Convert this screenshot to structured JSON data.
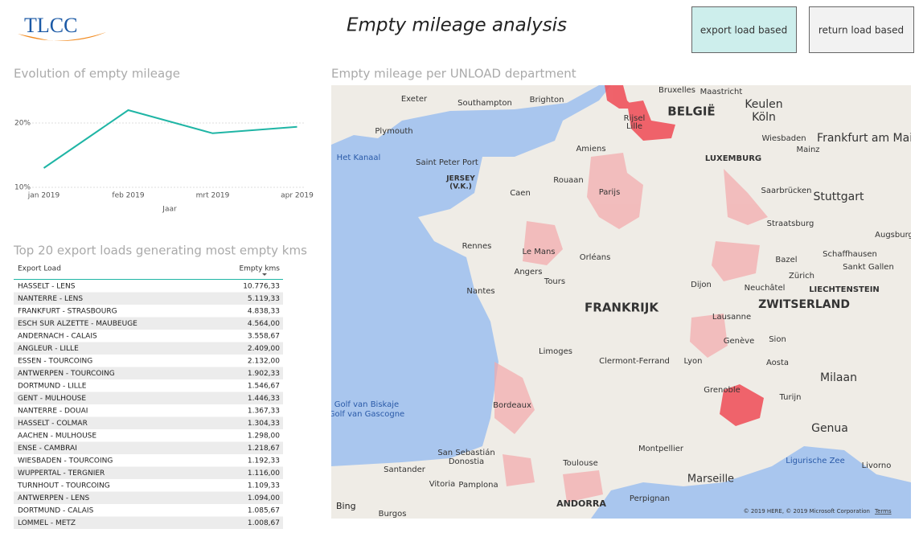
{
  "header": {
    "logo": "TLCC",
    "title": "Empty mileage analysis",
    "buttons": [
      "export load based",
      "return load based"
    ]
  },
  "chart_data": {
    "type": "line",
    "title": "Evolution of empty mileage",
    "xlabel": "Jaar",
    "categories": [
      "jan 2019",
      "feb 2019",
      "mrt 2019",
      "apr 2019"
    ],
    "values": [
      13,
      22,
      18.4,
      19.4
    ],
    "color": "#1fb5a5",
    "ylim": [
      10,
      23
    ],
    "yticks": [
      {
        "value": 10,
        "label": "10%"
      },
      {
        "value": 20,
        "label": "20%"
      }
    ],
    "grid": true
  },
  "table": {
    "title": "Top 20 export loads generating most empty kms",
    "columns": [
      "Export Load",
      "Empty kms"
    ],
    "rows": [
      [
        "HASSELT - LENS",
        "10.776,33"
      ],
      [
        "NANTERRE - LENS",
        "5.119,33"
      ],
      [
        "FRANKFURT - STRASBOURG",
        "4.838,33"
      ],
      [
        "ESCH SUR ALZETTE - MAUBEUGE",
        "4.564,00"
      ],
      [
        "ANDERNACH - CALAIS",
        "3.558,67"
      ],
      [
        "ANGLEUR - LILLE",
        "2.409,00"
      ],
      [
        "ESSEN - TOURCOING",
        "2.132,00"
      ],
      [
        "ANTWERPEN - TOURCOING",
        "1.902,33"
      ],
      [
        "DORTMUND - LILLE",
        "1.546,67"
      ],
      [
        "GENT - MULHOUSE",
        "1.446,33"
      ],
      [
        "NANTERRE - DOUAI",
        "1.367,33"
      ],
      [
        "HASSELT - COLMAR",
        "1.304,33"
      ],
      [
        "AACHEN - MULHOUSE",
        "1.298,00"
      ],
      [
        "ENSE - CAMBRAI",
        "1.218,67"
      ],
      [
        "WIESBADEN - TOURCOING",
        "1.192,33"
      ],
      [
        "WUPPERTAL - TERGNIER",
        "1.116,00"
      ],
      [
        "TURNHOUT - TOURCOING",
        "1.109,33"
      ],
      [
        "ANTWERPEN - LENS",
        "1.094,00"
      ],
      [
        "DORTMUND - CALAIS",
        "1.085,67"
      ],
      [
        "LOMMEL - METZ",
        "1.008,67"
      ]
    ]
  },
  "map": {
    "title": "Empty mileage per UNLOAD department",
    "labels": [
      "Exeter",
      "Southampton",
      "Brighton",
      "Plymouth",
      "Bruxelles",
      "Maastricht",
      "BELGIË",
      "Keulen",
      "Köln",
      "Rijsel",
      "Lille",
      "Het Kanaal",
      "Saint Peter Port",
      "JERSEY",
      "(V.K.)",
      "Amiens",
      "Wiesbaden",
      "Mainz",
      "Frankfurt am Main",
      "LUXEMBURG",
      "Caen",
      "Rouaan",
      "Parijs",
      "Saarbrücken",
      "Stuttgart",
      "Straatsburg",
      "Augsburg",
      "Rennes",
      "Le Mans",
      "Orléans",
      "Schaffhausen",
      "Bazel",
      "Sankt Gallen",
      "Angers",
      "Tours",
      "Zürich",
      "Dijon",
      "Nantes",
      "Neuchâtel",
      "LIECHTENSTEIN",
      "FRANKRIJK",
      "ZWITSERLAND",
      "Lausanne",
      "Genève",
      "Sion",
      "Limoges",
      "Clermont-Ferrand",
      "Lyon",
      "Aosta",
      "Milaan",
      "Grenoble",
      "Turijn",
      "Bordeaux",
      "Golf van Biskaje",
      "Golf van Gascogne",
      "Genua",
      "San Sebastián",
      "Donostia",
      "Montpellier",
      "Toulouse",
      "Ligurische Zee",
      "Santander",
      "Livorno",
      "Marseille",
      "Vitoria",
      "Pamplona",
      "Perpignan",
      "ANDORRA",
      "Burgos"
    ],
    "brand": "Bing",
    "copyright": "© 2019 HERE, © 2019 Microsoft Corporation",
    "terms": "Terms"
  }
}
